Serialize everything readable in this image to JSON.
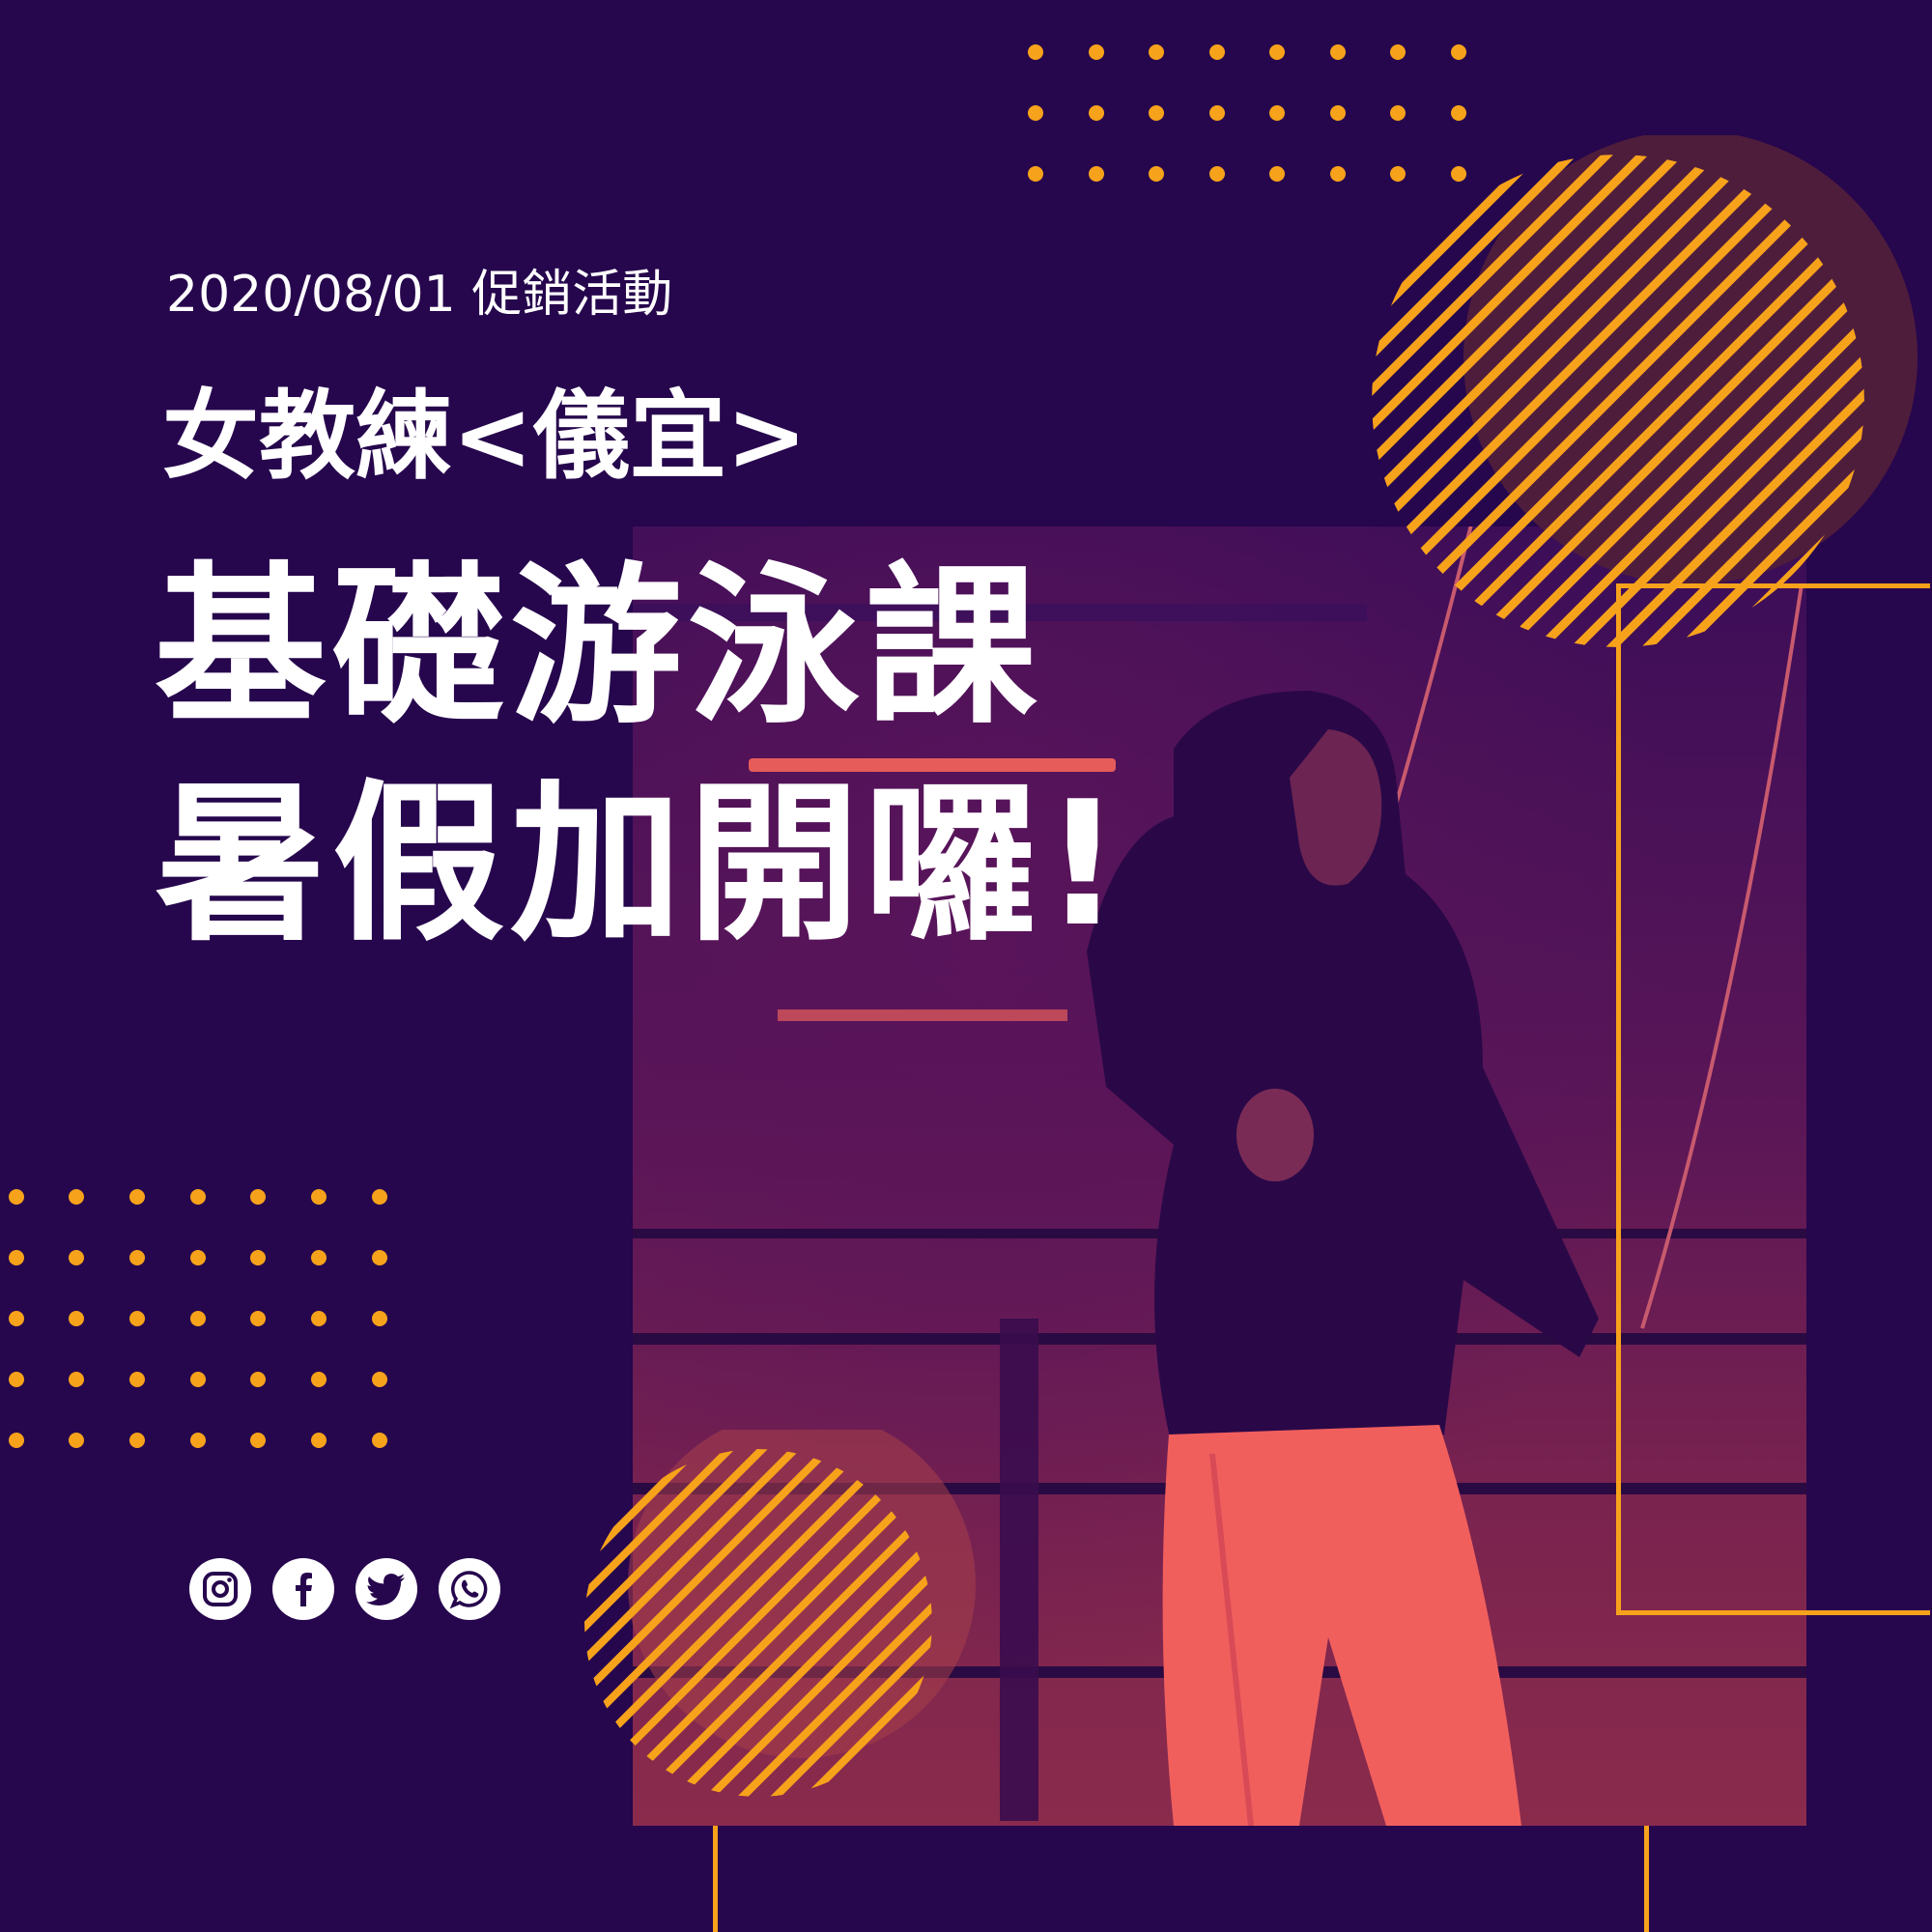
{
  "poster": {
    "date_line": "2020/08/01 促銷活動",
    "coach_line": "女教練<儀宜>",
    "headline_line1": "基礎游泳課",
    "headline_line2": "暑假加開囉!"
  },
  "colors": {
    "background": "#26064d",
    "accent": "#f7a21b",
    "text": "#ffffff"
  },
  "social_icons": [
    "instagram-icon",
    "facebook-icon",
    "twitter-icon",
    "whatsapp-icon"
  ]
}
